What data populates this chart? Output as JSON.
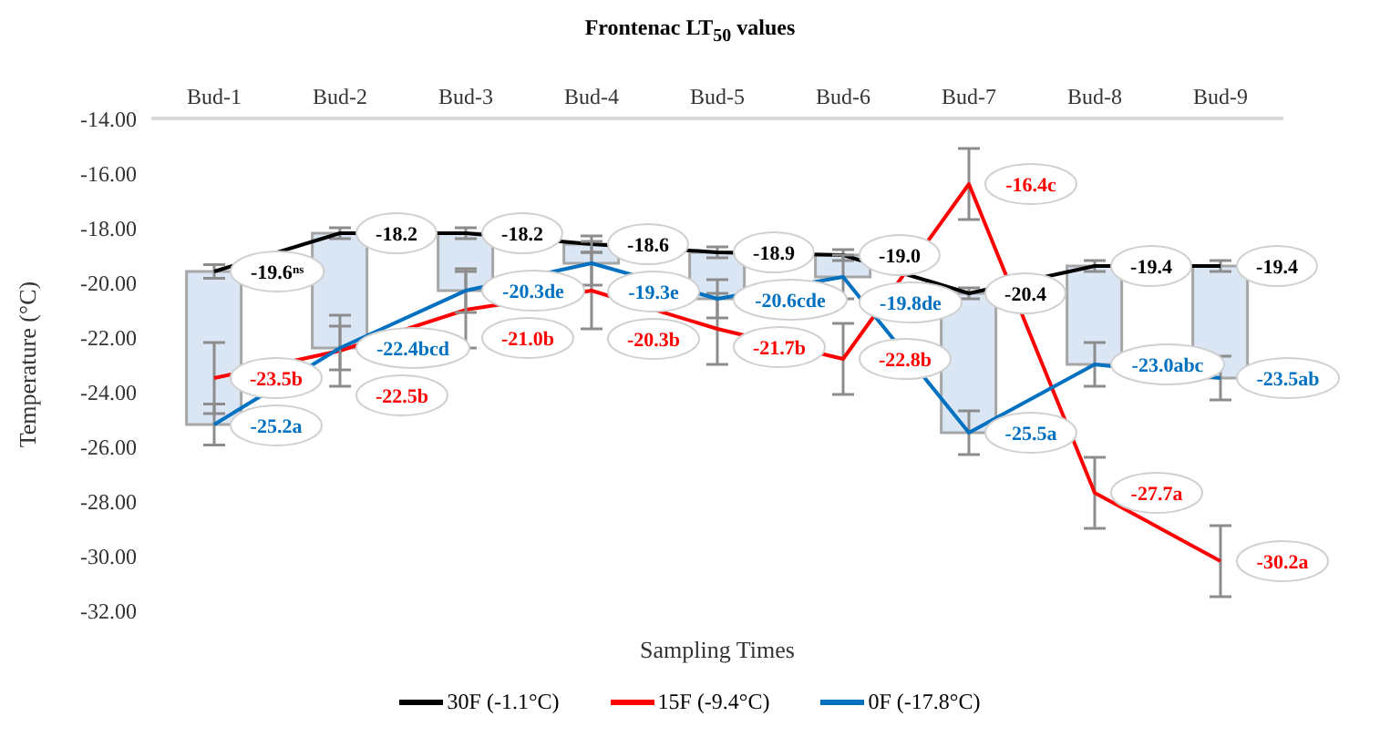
{
  "chart_data": {
    "type": "line",
    "title": "Frontenac LT$_{50}$ values",
    "xlabel": "Sampling Times",
    "ylabel": "Temperature (°C)",
    "categories": [
      "Bud-1",
      "Bud-2",
      "Bud-3",
      "Bud-4",
      "Bud-5",
      "Bud-6",
      "Bud-7",
      "Bud-8",
      "Bud-9"
    ],
    "ylim": [
      -32,
      -14
    ],
    "yticks": [
      {
        "value": -32,
        "label": "-32.00"
      },
      {
        "value": -30,
        "label": "-30.00"
      },
      {
        "value": -28,
        "label": "-28.00"
      },
      {
        "value": -26,
        "label": "-26.00"
      },
      {
        "value": -24,
        "label": "-24.00"
      },
      {
        "value": -22,
        "label": "-22.00"
      },
      {
        "value": -20,
        "label": "-20.00"
      },
      {
        "value": -18,
        "label": "-18.00"
      },
      {
        "value": -16,
        "label": "-16.00"
      },
      {
        "value": -14,
        "label": "-14.00"
      }
    ],
    "series": [
      {
        "type": "bar",
        "color": "#dae6f4",
        "base": [
          -25.2,
          -22.4,
          -20.3,
          -19.3,
          -20.6,
          -19.8,
          -25.5,
          -23.0,
          -23.5
        ],
        "values": [
          5.6,
          4.2,
          2.1,
          0.7,
          1.7,
          0.8,
          5.1,
          3.6,
          4.1
        ]
      },
      {
        "name": "30F (-1.1°C)",
        "color": "#000000",
        "values": [
          -19.6,
          -18.2,
          -18.2,
          -18.6,
          -18.9,
          -19.0,
          -20.4,
          -19.4,
          -19.4
        ],
        "errors": [
          0.25,
          0.2,
          0.2,
          0.3,
          0.2,
          0.2,
          0.2,
          0.2,
          0.2
        ],
        "value_labels": [
          "-19.6$^{ns}$",
          "-18.2",
          "-18.2",
          "-18.6",
          "-18.9",
          "-19.0",
          "-20.4",
          "-19.4",
          "-19.4"
        ]
      },
      {
        "name": "15F (-9.4°C)",
        "color": "#ff0000",
        "values": [
          -23.5,
          -22.5,
          -21.0,
          -20.3,
          -21.7,
          -22.8,
          -16.4,
          -27.7,
          -30.2
        ],
        "errors": [
          1.3,
          1.3,
          1.4,
          1.4,
          1.3,
          1.3,
          1.3,
          1.3,
          1.3
        ],
        "value_labels": [
          "-23.5b",
          "-22.5b",
          "-21.0b",
          "-20.3b",
          "-21.7b",
          "-22.8b",
          "-16.4c",
          "-27.7a",
          "-30.2a"
        ]
      },
      {
        "name": "0F (-17.8°C)",
        "color": "#0070c0",
        "values": [
          -25.2,
          -22.4,
          -20.3,
          -19.3,
          -20.6,
          -19.8,
          -25.5,
          -23.0,
          -23.5
        ],
        "errors": [
          0.75,
          0.8,
          0.8,
          0.8,
          0.7,
          0.8,
          0.8,
          0.8,
          0.8
        ],
        "value_labels": [
          "-25.2a",
          "-22.4bcd",
          "-20.3de",
          "-19.3e",
          "-20.6cde",
          "-19.8de",
          "-25.5a",
          "-23.0abc",
          "-23.5ab"
        ]
      }
    ],
    "legend": "bottom"
  }
}
